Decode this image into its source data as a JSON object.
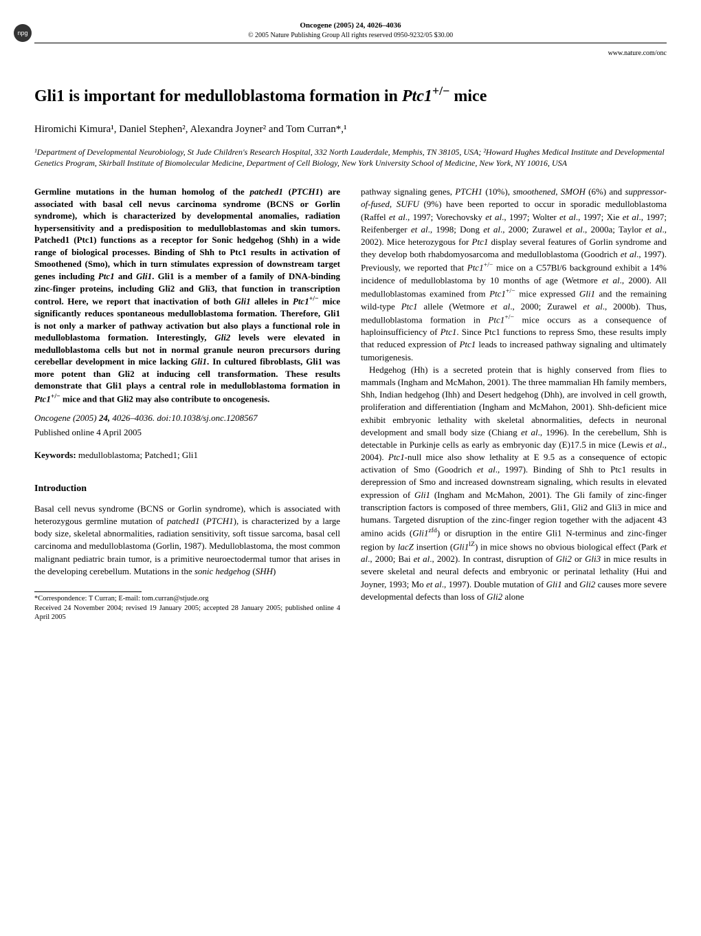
{
  "header": {
    "logo_text": "npg",
    "journal_citation": "Oncogene (2005) 24, 4026–4036",
    "copyright": "© 2005 Nature Publishing Group   All rights reserved 0950-9232/05 $30.00",
    "url": "www.nature.com/onc"
  },
  "title": "Gli1 is important for medulloblastoma formation in Ptc1+/− mice",
  "authors": "Hiromichi Kimura¹, Daniel Stephen², Alexandra Joyner² and Tom Curran*,¹",
  "affiliations": "¹Department of Developmental Neurobiology, St Jude Children's Research Hospital, 332 North Lauderdale, Memphis, TN 38105, USA; ²Howard Hughes Medical Institute and Developmental Genetics Program, Skirball Institute of Biomolecular Medicine, Department of Cell Biology, New York University School of Medicine, New York, NY 10016, USA",
  "abstract": "Germline mutations in the human homolog of the patched1 (PTCH1) are associated with basal cell nevus carcinoma syndrome (BCNS or Gorlin syndrome), which is characterized by developmental anomalies, radiation hypersensitivity and a predisposition to medulloblastomas and skin tumors. Patched1 (Ptc1) functions as a receptor for Sonic hedgehog (Shh) in a wide range of biological processes. Binding of Shh to Ptc1 results in activation of Smoothened (Smo), which in turn stimulates expression of downstream target genes including Ptc1 and Gli1. Gli1 is a member of a family of DNA-binding zinc-finger proteins, including Gli2 and Gli3, that function in transcription control. Here, we report that inactivation of both Gli1 alleles in Ptc1+/− mice significantly reduces spontaneous medulloblastoma formation. Therefore, Gli1 is not only a marker of pathway activation but also plays a functional role in medulloblastoma formation. Interestingly, Gli2 levels were elevated in medulloblastoma cells but not in normal granule neuron precursors during cerebellar development in mice lacking Gli1. In cultured fibroblasts, Gli1 was more potent than Gli2 at inducing cell transformation. These results demonstrate that Gli1 plays a central role in medulloblastoma formation in Ptc1+/− mice and that Gli2 may also contribute to oncogenesis.",
  "citation_line": "Oncogene (2005) 24, 4026–4036. doi:10.1038/sj.onc.1208567",
  "pub_online": "Published online 4 April 2005",
  "keywords_label": "Keywords:",
  "keywords": " medulloblastoma; Patched1; Gli1",
  "intro_heading": "Introduction",
  "intro_p1": "Basal cell nevus syndrome (BCNS or Gorlin syndrome), which is associated with heterozygous germline mutation of patched1 (PTCH1), is characterized by a large body size, skeletal abnormalities, radiation sensitivity, soft tissue sarcoma, basal cell carcinoma and medulloblastoma (Gorlin, 1987). Medulloblastoma, the most common malignant pediatric brain tumor, is a primitive neuroectodermal tumor that arises in the developing cerebellum. Mutations in the sonic hedgehog (SHH)",
  "col2_p1": "pathway signaling genes, PTCH1 (10%), smoothened, SMOH (6%) and suppressor-of-fused, SUFU (9%) have been reported to occur in sporadic medulloblastoma (Raffel et al., 1997; Vorechovsky et al., 1997; Wolter et al., 1997; Xie et al., 1997; Reifenberger et al., 1998; Dong et al., 2000; Zurawel et al., 2000a; Taylor et al., 2002). Mice heterozygous for Ptc1 display several features of Gorlin syndrome and they develop both rhabdomyosarcoma and medulloblastoma (Goodrich et al., 1997). Previously, we reported that Ptc1+/− mice on a C57Bl/6 background exhibit a 14% incidence of medulloblastoma by 10 months of age (Wetmore et al., 2000). All medulloblastomas examined from Ptc1+/− mice expressed Gli1 and the remaining wild-type Ptc1 allele (Wetmore et al., 2000; Zurawel et al., 2000b). Thus, medulloblastoma formation in Ptc1+/− mice occurs as a consequence of haploinsufficiency of Ptc1. Since Ptc1 functions to repress Smo, these results imply that reduced expression of Ptc1 leads to increased pathway signaling and ultimately tumorigenesis.",
  "col2_p2": "Hedgehog (Hh) is a secreted protein that is highly conserved from flies to mammals (Ingham and McMahon, 2001). The three mammalian Hh family members, Shh, Indian hedgehog (Ihh) and Desert hedgehog (Dhh), are involved in cell growth, proliferation and differentiation (Ingham and McMahon, 2001). Shh-deficient mice exhibit embryonic lethality with skeletal abnormalities, defects in neuronal development and small body size (Chiang et al., 1996). In the cerebellum, Shh is detectable in Purkinje cells as early as embryonic day (E)17.5 in mice (Lewis et al., 2004). Ptc1-null mice also show lethality at E 9.5 as a consequence of ectopic activation of Smo (Goodrich et al., 1997). Binding of Shh to Ptc1 results in derepression of Smo and increased downstream signaling, which results in elevated expression of Gli1 (Ingham and McMahon, 2001). The Gli family of zinc-finger transcription factors is composed of three members, Gli1, Gli2 and Gli3 in mice and humans. Targeted disruption of the zinc-finger region together with the adjacent 43 amino acids (Gli1zfd) or disruption in the entire Gli1 N-terminus and zinc-finger region by lacZ insertion (Gli1lZ) in mice shows no obvious biological effect (Park et al., 2000; Bai et al., 2002). In contrast, disruption of Gli2 or Gli3 in mice results in severe skeletal and neural defects and embryonic or perinatal lethality (Hui and Joyner, 1993; Mo et al., 1997). Double mutation of Gli1 and Gli2 causes more severe developmental defects than loss of Gli2 alone",
  "footnote_correspondence": "*Correspondence: T Curran; E-mail: tom.curran@stjude.org",
  "footnote_dates": "Received 24 November 2004; revised 19 January 2005; accepted 28 January 2005; published online 4 April 2005"
}
